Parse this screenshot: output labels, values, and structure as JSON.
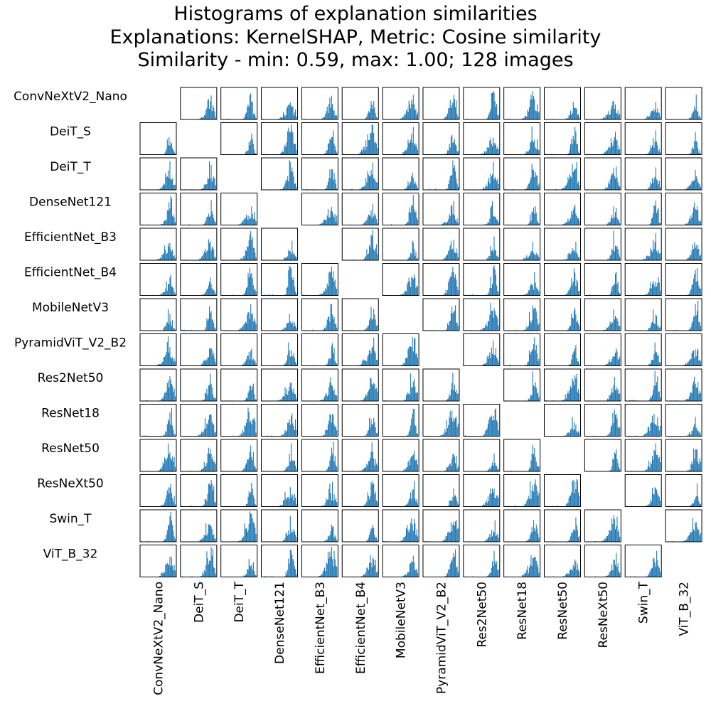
{
  "title": {
    "line1": "Histograms of explanation similarities",
    "line2": "Explanations: KernelSHAP, Metric: Cosine similarity",
    "line3": "Similarity - min: 0.59, max: 1.00; 128 images"
  },
  "chart_data": {
    "type": "histogram-matrix",
    "explanation_method": "KernelSHAP",
    "metric": "Cosine similarity",
    "similarity_min": 0.59,
    "similarity_max": 1.0,
    "n_images": 128,
    "models": [
      "ConvNeXtV2_Nano",
      "DeiT_S",
      "DeiT_T",
      "DenseNet121",
      "EfficientNet_B3",
      "EfficientNet_B4",
      "MobileNetV3",
      "PyramidViT_V2_B2",
      "Res2Net50",
      "ResNet18",
      "ResNet50",
      "ResNeXt50",
      "Swin_T",
      "ViT_B_32"
    ],
    "diagonal": "empty",
    "bar_color": "#1f77b4",
    "x_range": [
      0.59,
      1.0
    ],
    "bins": 40,
    "axes_ticks": "hidden"
  }
}
